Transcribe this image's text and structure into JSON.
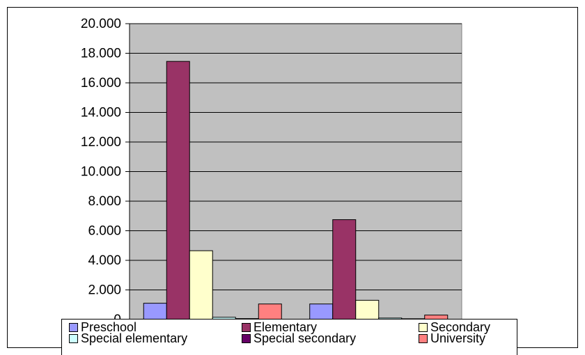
{
  "chart_data": {
    "type": "bar",
    "categories": [
      "",
      ""
    ],
    "series": [
      {
        "name": "Preschool",
        "color": "#9999FF",
        "values": [
          1100,
          1050
        ]
      },
      {
        "name": "Elementary",
        "color": "#993366",
        "values": [
          17450,
          6750
        ]
      },
      {
        "name": "Secondary",
        "color": "#FFFFCC",
        "values": [
          4650,
          1300
        ]
      },
      {
        "name": "Special elementary",
        "color": "#CCFFFF",
        "values": [
          150,
          100
        ]
      },
      {
        "name": "Special secondary",
        "color": "#660066",
        "values": [
          60,
          50
        ]
      },
      {
        "name": "University",
        "color": "#FF8080",
        "values": [
          1050,
          300
        ]
      }
    ],
    "y_ticks": [
      "0",
      "2.000",
      "4.000",
      "6.000",
      "8.000",
      "10.000",
      "12.000",
      "14.000",
      "16.000",
      "18.000",
      "20.000"
    ],
    "ylim": [
      0,
      20000
    ],
    "grid": true,
    "plot_background": "#C0C0C0",
    "legend_position": "bottom",
    "title": "",
    "xlabel": "",
    "ylabel": ""
  }
}
